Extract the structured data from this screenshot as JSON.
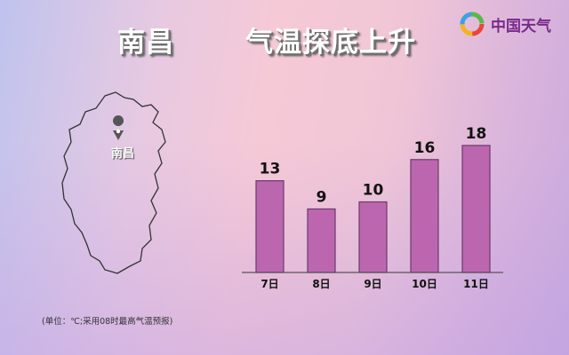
{
  "header": {
    "city": "南昌",
    "headline": "气温探底上升",
    "logo_text": "中国天气"
  },
  "map": {
    "city_label": "南昌",
    "pin_icon": "location-pin-icon"
  },
  "footnote": "(单位：℃;采用08时最高气温预报)",
  "colors": {
    "bar": "#bd66b0",
    "bar_border": "#6b3a6b"
  },
  "chart_data": {
    "type": "bar",
    "categories": [
      "7日",
      "8日",
      "9日",
      "10日",
      "11日"
    ],
    "values": [
      13,
      9,
      10,
      16,
      18
    ],
    "title": "",
    "xlabel": "",
    "ylabel": "",
    "ylim": [
      0,
      18
    ],
    "grid": false
  }
}
